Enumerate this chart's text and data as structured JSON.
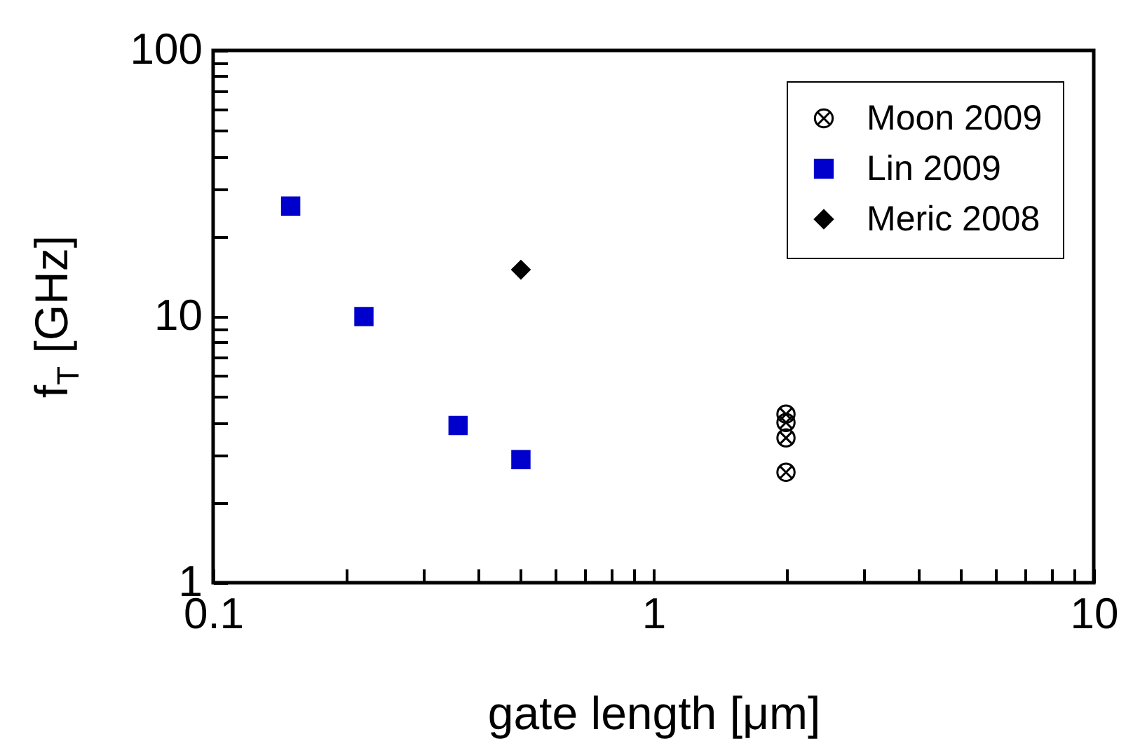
{
  "chart_data": {
    "type": "scatter",
    "xlabel": "gate length [μm]",
    "ylabel": "f$_{T}$ [GHz]",
    "log": "xy",
    "legend": "top right",
    "grid": false,
    "xlim": [
      0.1,
      10
    ],
    "ylim": [
      1,
      100
    ],
    "xticks": [
      0.1,
      {
        "value": 0.2,
        "label": null
      },
      {
        "value": 0.3,
        "label": null
      },
      {
        "value": 0.4,
        "label": null
      },
      {
        "value": 0.5,
        "label": null
      },
      {
        "value": 0.6,
        "label": null
      },
      {
        "value": 0.7,
        "label": null
      },
      {
        "value": 0.8,
        "label": null
      },
      {
        "value": 0.9,
        "label": null
      },
      1,
      {
        "value": 2,
        "label": null
      },
      {
        "value": 3,
        "label": null
      },
      {
        "value": 4,
        "label": null
      },
      {
        "value": 5,
        "label": null
      },
      {
        "value": 6,
        "label": null
      },
      {
        "value": 7,
        "label": null
      },
      {
        "value": 8,
        "label": null
      },
      {
        "value": 9,
        "label": null
      },
      10
    ],
    "yticks": [
      1,
      {
        "value": 2,
        "label": null
      },
      {
        "value": 3,
        "label": null
      },
      {
        "value": 4,
        "label": null
      },
      {
        "value": 5,
        "label": null
      },
      {
        "value": 6,
        "label": null
      },
      {
        "value": 7,
        "label": null
      },
      {
        "value": 8,
        "label": null
      },
      {
        "value": 9,
        "label": null
      },
      10,
      {
        "value": 20,
        "label": null
      },
      {
        "value": 30,
        "label": null
      },
      {
        "value": 40,
        "label": null
      },
      {
        "value": 50,
        "label": null
      },
      {
        "value": 60,
        "label": null
      },
      {
        "value": 70,
        "label": null
      },
      {
        "value": 80,
        "label": null
      },
      {
        "value": 90,
        "label": null
      },
      100
    ],
    "series": [
      {
        "name": "Moon 2009",
        "color": "#000000",
        "marker": "cross",
        "x": [
          2,
          2,
          2,
          2
        ],
        "values": [
          4.3,
          4.0,
          3.5,
          2.6
        ]
      },
      {
        "name": "Lin 2009",
        "color": "#0000cc",
        "marker": "square",
        "x": [
          0.15,
          0.22,
          0.36,
          0.5
        ],
        "values": [
          26,
          10,
          3.9,
          2.9
        ]
      },
      {
        "name": "Meric 2008",
        "color": "#000000",
        "marker": "diamond",
        "x": [
          0.5
        ],
        "values": [
          15
        ]
      }
    ]
  }
}
